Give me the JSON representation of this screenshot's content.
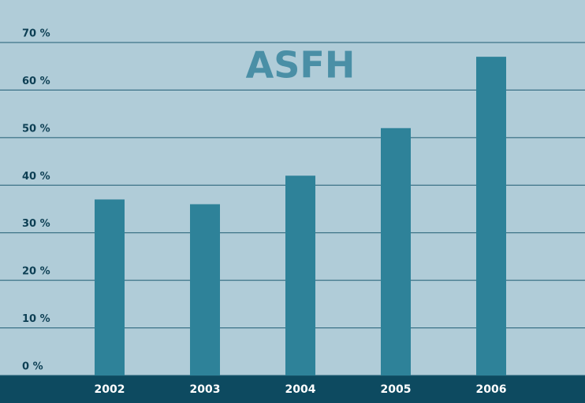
{
  "chart_data": {
    "type": "bar",
    "title": "ASFH",
    "categories": [
      "2002",
      "2003",
      "2004",
      "2005",
      "2006"
    ],
    "values": [
      37,
      36,
      42,
      52,
      67
    ],
    "color": "#2e8299",
    "ylim": [
      0,
      70
    ],
    "yticks": [
      {
        "value": 0,
        "label": "0 %"
      },
      {
        "value": 10,
        "label": "10 %"
      },
      {
        "value": 20,
        "label": "20 %"
      },
      {
        "value": 30,
        "label": "30 %"
      },
      {
        "value": 40,
        "label": "40 %"
      },
      {
        "value": 50,
        "label": "50 %"
      },
      {
        "value": 60,
        "label": "60 %"
      },
      {
        "value": 70,
        "label": "70 %"
      }
    ],
    "grid": true
  }
}
